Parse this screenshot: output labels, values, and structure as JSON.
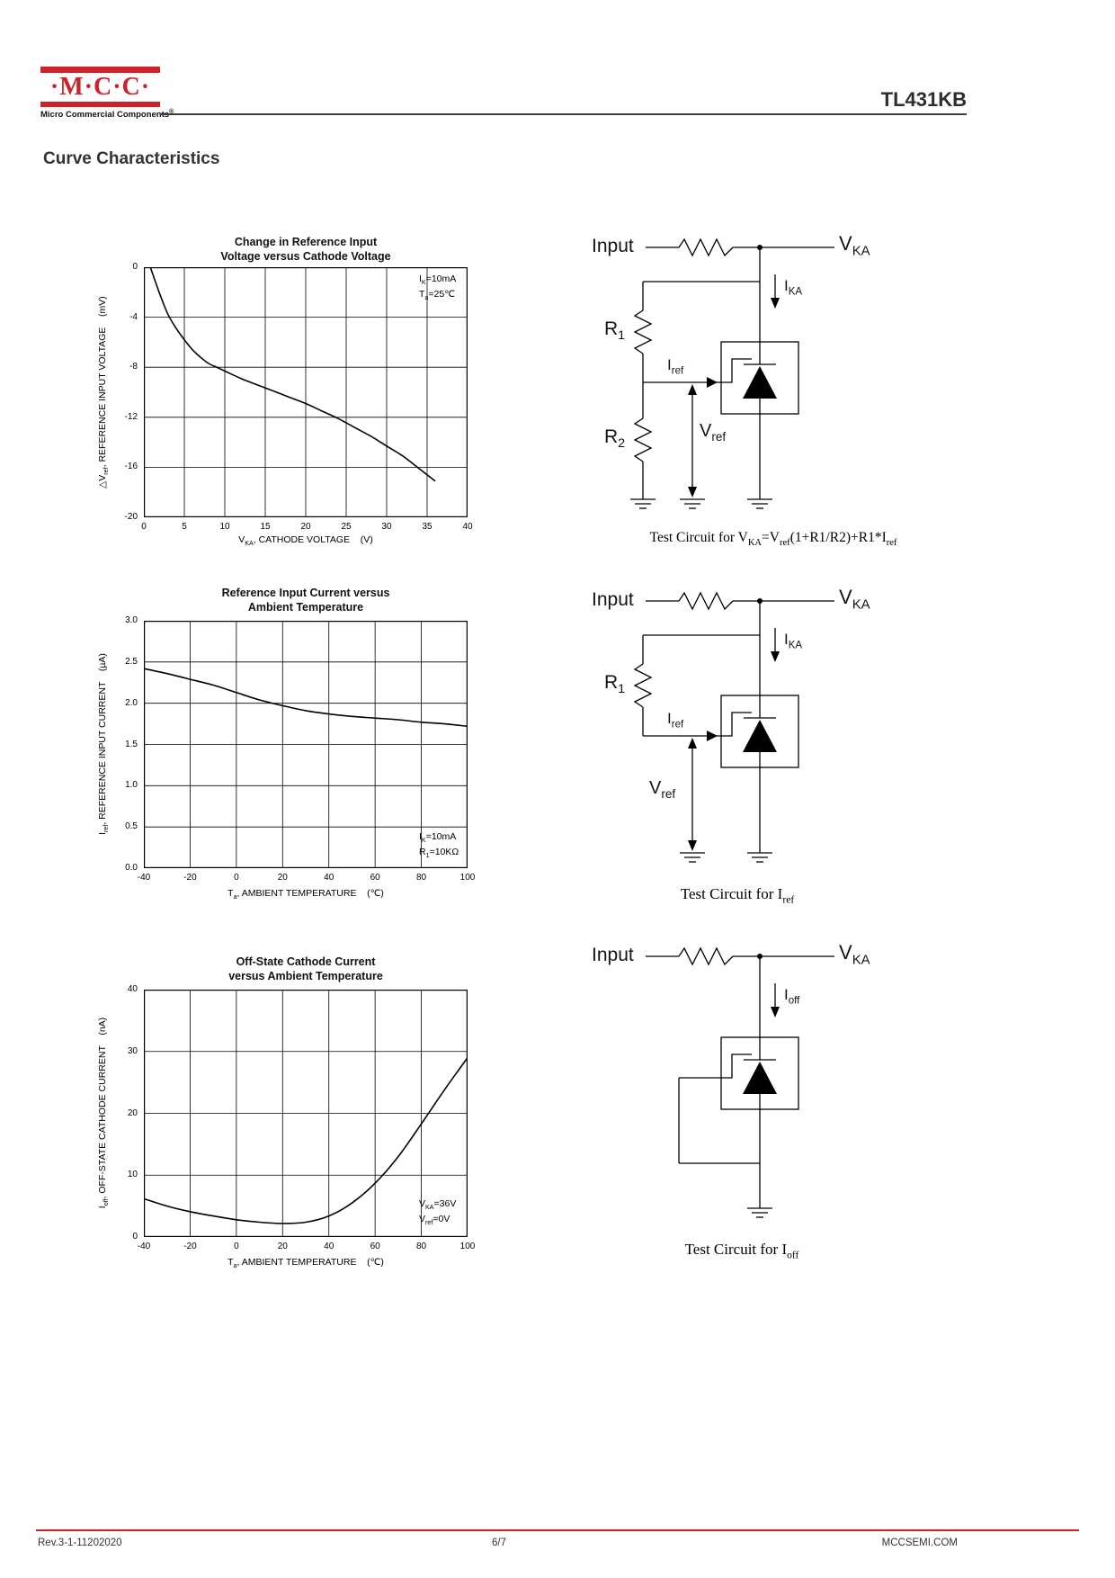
{
  "header": {
    "brand": "·M·C·C·",
    "brand_sub": "Micro Commercial Components",
    "brand_reg": "®",
    "part": "TL431KB",
    "accent_color": "#cc2229"
  },
  "section_title": "Curve Characteristics",
  "chart_data": [
    {
      "type": "line",
      "title_line1": "Change in Reference Input",
      "title_line2": "Voltage versus Cathode Voltage",
      "xlabel": "V~KA~, CATHODE VOLTAGE    (V)",
      "ylabel": "△V~ref~, REFERENCE INPUT VOLTAGE    (mV)",
      "xlim": [
        0,
        40
      ],
      "ylim": [
        -20,
        0
      ],
      "xticks": [
        "0",
        "5",
        "10",
        "15",
        "20",
        "25",
        "30",
        "35",
        "40"
      ],
      "yticks": [
        "0",
        "-4",
        "-8",
        "-12",
        "-16",
        "-20"
      ],
      "grid": true,
      "annotations": [
        "I~K~=10mA",
        "T~a~=25℃"
      ],
      "x": [
        0.8,
        2,
        3,
        4,
        5,
        6,
        7,
        8,
        9,
        10,
        12,
        14,
        16,
        18,
        20,
        22,
        24,
        26,
        28,
        30,
        32,
        34,
        36
      ],
      "y": [
        0,
        -2.2,
        -3.8,
        -4.9,
        -5.8,
        -6.6,
        -7.2,
        -7.7,
        -8.0,
        -8.3,
        -8.9,
        -9.4,
        -9.9,
        -10.4,
        -10.9,
        -11.5,
        -12.1,
        -12.8,
        -13.5,
        -14.3,
        -15.1,
        -16.1,
        -17.1
      ]
    },
    {
      "type": "line",
      "title_line1": "Reference Input Current versus",
      "title_line2": "Ambient Temperature",
      "xlabel": "T~a~, AMBIENT TEMPERATURE    (℃)",
      "ylabel": "I~ref~, REFERENCE INPUT CURRENT    (µA)",
      "xlim": [
        -40,
        100
      ],
      "ylim": [
        0,
        3
      ],
      "xticks": [
        "-40",
        "-20",
        "0",
        "20",
        "40",
        "60",
        "80",
        "100"
      ],
      "yticks": [
        "0.0",
        "0.5",
        "1.0",
        "1.5",
        "2.0",
        "2.5",
        "3.0"
      ],
      "grid": true,
      "annotations": [
        "I~K~=10mA",
        "R~1~=10KΩ"
      ],
      "x": [
        -40,
        -30,
        -20,
        -10,
        0,
        10,
        20,
        30,
        40,
        50,
        60,
        70,
        80,
        90,
        100
      ],
      "y": [
        2.42,
        2.36,
        2.29,
        2.22,
        2.13,
        2.04,
        1.97,
        1.91,
        1.87,
        1.84,
        1.82,
        1.8,
        1.77,
        1.75,
        1.72
      ]
    },
    {
      "type": "line",
      "title_line1": "Off-State Cathode Current",
      "title_line2": "versus Ambient Temperature",
      "xlabel": "T~a~, AMBIENT TEMPERATURE    (℃)",
      "ylabel": "I~off~, OFF-STATE CATHODE CURRENT    (nA)",
      "xlim": [
        -40,
        100
      ],
      "ylim": [
        0,
        40
      ],
      "xticks": [
        "-40",
        "-20",
        "0",
        "20",
        "40",
        "60",
        "80",
        "100"
      ],
      "yticks": [
        "0",
        "10",
        "20",
        "30",
        "40"
      ],
      "grid": true,
      "annotations": [
        "V~KA~=36V",
        "V~ref~=0V"
      ],
      "x": [
        -40,
        -30,
        -20,
        -10,
        0,
        10,
        20,
        30,
        40,
        50,
        60,
        70,
        80,
        90,
        100
      ],
      "y": [
        6.2,
        5.0,
        4.1,
        3.4,
        2.8,
        2.4,
        2.2,
        2.4,
        3.4,
        5.5,
        8.7,
        13.0,
        18.3,
        23.8,
        29.0
      ]
    }
  ],
  "circuits": [
    {
      "input": "Input",
      "vka": "V~KA~",
      "current": "I~KA~",
      "r1": "R~1~",
      "r2": "R~2~",
      "iref": "I~ref~",
      "vref": "V~ref~",
      "caption": "Test Circuit for V~KA~=V~ref~(1+R1/R2)+R1*I~ref~"
    },
    {
      "input": "Input",
      "vka": "V~KA~",
      "current": "I~KA~",
      "r1": "R~1~",
      "iref": "I~ref~",
      "vref": "V~ref~",
      "caption": "Test Circuit for I~ref~"
    },
    {
      "input": "Input",
      "vka": "V~KA~",
      "current": "I~off~",
      "caption": "Test Circuit for I~off~"
    }
  ],
  "footer": {
    "revision": "Rev.3-1-11202020",
    "page_number": "6/7",
    "website": "MCCSEMI.COM"
  }
}
